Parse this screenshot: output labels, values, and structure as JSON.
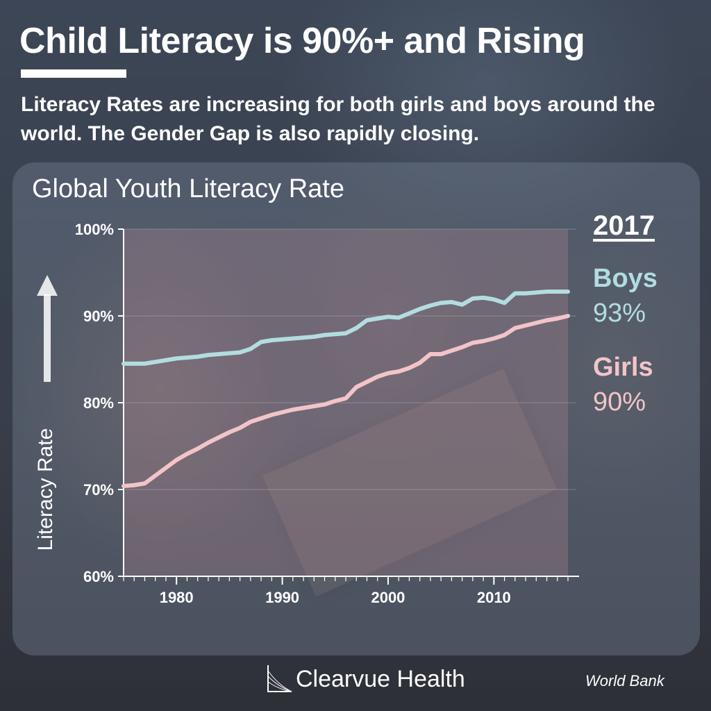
{
  "header": {
    "title": "Child Literacy is 90%+ and Rising",
    "subtitle": "Literacy Rates are increasing for both girls and boys around the world. The Gender Gap is also rapidly closing."
  },
  "legend": {
    "year": "2017",
    "boys_label": "Boys",
    "boys_value": "93%",
    "girls_label": "Girls",
    "girls_value": "90%"
  },
  "footer": {
    "brand": "Clearvue Health",
    "source": "World Bank"
  },
  "colors": {
    "boys": "#b2dde0",
    "girls": "#f2c4c8",
    "axis": "#ffffff"
  },
  "icons": [
    "up-arrow-icon",
    "clearvue-logo-icon"
  ],
  "chart_data": {
    "type": "line",
    "title": "Global Youth Literacy Rate",
    "xlabel": "",
    "ylabel": "Literacy Rate",
    "xlim": [
      1975,
      2017
    ],
    "ylim": [
      60,
      100
    ],
    "xticks": [
      1980,
      1990,
      2000,
      2010
    ],
    "yticks": [
      60,
      70,
      80,
      90,
      100
    ],
    "ytick_labels": [
      "60%",
      "70%",
      "80%",
      "90%",
      "100%"
    ],
    "grid": true,
    "legend_position": "right",
    "x": [
      1975,
      1976,
      1977,
      1978,
      1979,
      1980,
      1981,
      1982,
      1983,
      1984,
      1985,
      1986,
      1987,
      1988,
      1989,
      1990,
      1991,
      1992,
      1993,
      1994,
      1995,
      1996,
      1997,
      1998,
      1999,
      2000,
      2001,
      2002,
      2003,
      2004,
      2005,
      2006,
      2007,
      2008,
      2009,
      2010,
      2011,
      2012,
      2013,
      2014,
      2015,
      2016,
      2017
    ],
    "series": [
      {
        "name": "Boys",
        "values": [
          84.5,
          84.5,
          84.5,
          84.7,
          84.9,
          85.1,
          85.2,
          85.3,
          85.5,
          85.6,
          85.7,
          85.8,
          86.2,
          87.0,
          87.2,
          87.3,
          87.4,
          87.5,
          87.6,
          87.8,
          87.9,
          88.0,
          88.6,
          89.5,
          89.7,
          89.9,
          89.8,
          90.3,
          90.8,
          91.2,
          91.5,
          91.6,
          91.3,
          92.0,
          92.1,
          91.9,
          91.5,
          92.6,
          92.6,
          92.7,
          92.8,
          92.8,
          92.8
        ]
      },
      {
        "name": "Girls",
        "values": [
          70.4,
          70.5,
          70.7,
          71.6,
          72.5,
          73.4,
          74.1,
          74.7,
          75.4,
          76.0,
          76.6,
          77.1,
          77.8,
          78.2,
          78.6,
          78.9,
          79.2,
          79.4,
          79.6,
          79.8,
          80.2,
          80.5,
          81.8,
          82.4,
          83.0,
          83.4,
          83.6,
          84.0,
          84.6,
          85.6,
          85.6,
          86.0,
          86.4,
          86.9,
          87.1,
          87.4,
          87.8,
          88.6,
          88.9,
          89.2,
          89.5,
          89.7,
          90.0
        ]
      }
    ]
  }
}
